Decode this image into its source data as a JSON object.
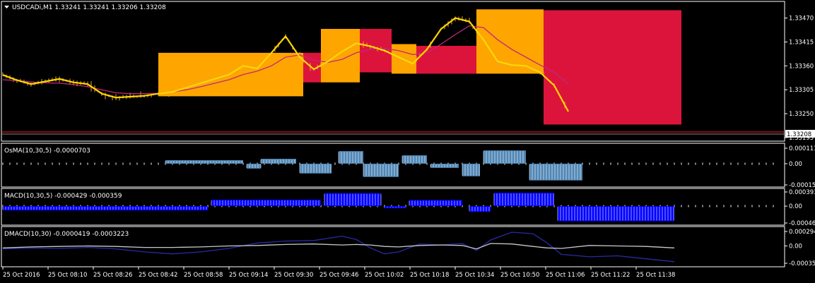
{
  "window": {
    "menu_icon": "triangle-down-icon",
    "symbol_header": "USDCADi,M1  1.33241 1.33241 1.33206 1.33208"
  },
  "colors": {
    "background": "#000000",
    "frame": "#ffffff",
    "price_line": "#ffd700",
    "ma_line": "#c0287a",
    "candles": "#e6a53a",
    "bid_line": "#ff2020",
    "box_orange": "#ffa500",
    "box_red": "#dc143c",
    "osma_hist": "#4f86b5",
    "macd_hist": "#0000ff",
    "dmacd_main": "#2a2aa5",
    "dmacd_signal": "#c8c8c8"
  },
  "chart_data": [
    {
      "type": "line",
      "panel": "price",
      "title": "USDCADi,M1",
      "current_price_label": "1.33208",
      "yticks": [
        "1.33470",
        "1.33415",
        "1.33360",
        "1.33305",
        "1.33250",
        "1.33195"
      ],
      "ylim": [
        1.3319,
        1.33505
      ],
      "x": [
        0,
        4,
        8,
        12,
        16,
        20,
        24,
        28,
        32,
        36,
        40,
        44,
        48,
        52,
        56,
        60,
        64,
        68,
        72,
        76,
        80,
        84,
        88,
        92,
        96,
        100,
        104,
        108,
        112,
        116,
        120,
        124,
        128,
        132,
        136,
        140,
        144,
        148,
        152,
        156,
        160
      ],
      "series": [
        {
          "values": [
            1.33339,
            1.33327,
            1.33318,
            1.33324,
            1.3333,
            1.33322,
            1.33318,
            1.33296,
            1.33287,
            1.33289,
            1.33291,
            1.33296,
            1.333,
            1.3331,
            1.3332,
            1.3333,
            1.3334,
            1.3336,
            1.33354,
            1.3339,
            1.33428,
            1.3338,
            1.33352,
            1.3337,
            1.33393,
            1.33412,
            1.33405,
            1.33395,
            1.3338,
            1.33365,
            1.33398,
            1.33445,
            1.3347,
            1.33462,
            1.3342,
            1.3337,
            1.33362,
            1.3336,
            1.33345,
            1.33315,
            1.33255
          ]
        },
        {
          "values": [
            1.33328,
            1.33326,
            1.33323,
            1.33321,
            1.3332,
            1.33317,
            1.33312,
            1.33305,
            1.33298,
            1.33296,
            1.33296,
            1.33297,
            1.333,
            1.33305,
            1.33312,
            1.3332,
            1.33328,
            1.3334,
            1.33348,
            1.3336,
            1.3338,
            1.33385,
            1.33373,
            1.33368,
            1.33375,
            1.3339,
            1.33398,
            1.334,
            1.33395,
            1.33386,
            1.3339,
            1.3341,
            1.33432,
            1.33452,
            1.33448,
            1.3342,
            1.33398,
            1.3338,
            1.33362,
            1.33345,
            1.33318
          ]
        }
      ],
      "boxes": [
        {
          "x0": 44,
          "x1": 85,
          "y0": 1.3329,
          "y1": 1.3339,
          "color": "orange"
        },
        {
          "x0": 85,
          "x1": 90,
          "y0": 1.33322,
          "y1": 1.3339,
          "color": "red"
        },
        {
          "x0": 90,
          "x1": 101,
          "y0": 1.33322,
          "y1": 1.33445,
          "color": "orange"
        },
        {
          "x0": 101,
          "x1": 110,
          "y0": 1.33345,
          "y1": 1.33445,
          "color": "red"
        },
        {
          "x0": 110,
          "x1": 117,
          "y0": 1.33342,
          "y1": 1.3341,
          "color": "orange"
        },
        {
          "x0": 117,
          "x1": 134,
          "y0": 1.33342,
          "y1": 1.33406,
          "color": "red"
        },
        {
          "x0": 134,
          "x1": 153,
          "y0": 1.33342,
          "y1": 1.3349,
          "color": "orange"
        },
        {
          "x0": 153,
          "x1": 192,
          "y0": 1.33225,
          "y1": 1.33488,
          "color": "red"
        }
      ]
    },
    {
      "type": "bar",
      "panel": "osma",
      "title": "OsMA(10,30,5) -0.0000703",
      "yticks": [
        "0.0001110",
        "0.00",
        "-0.000152"
      ],
      "ylim": [
        -0.000152,
        0.000111
      ],
      "blocks": [
        {
          "x0": 46,
          "x1": 68,
          "v": 2.5e-05
        },
        {
          "x0": 69,
          "x1": 73,
          "v": -3.5e-05
        },
        {
          "x0": 73,
          "x1": 83,
          "v": 3.5e-05
        },
        {
          "x0": 84,
          "x1": 93,
          "v": -7e-05
        },
        {
          "x0": 95,
          "x1": 102,
          "v": 9e-05
        },
        {
          "x0": 102,
          "x1": 112,
          "v": -9.5e-05
        },
        {
          "x0": 113,
          "x1": 120,
          "v": 6e-05
        },
        {
          "x0": 121,
          "x1": 129,
          "v": -3e-05
        },
        {
          "x0": 130,
          "x1": 135,
          "v": -9e-05
        },
        {
          "x0": 136,
          "x1": 148,
          "v": 9.5e-05
        },
        {
          "x0": 149,
          "x1": 164,
          "v": -0.00012
        }
      ]
    },
    {
      "type": "bar",
      "panel": "macd",
      "title": "MACD(10,30,5) -0.000429 -0.000359",
      "yticks": [
        "0.000393",
        "0.00",
        "-0.000469"
      ],
      "ylim": [
        -0.000469,
        0.000393
      ],
      "blocks": [
        {
          "x0": 0,
          "x1": 58,
          "v": -0.00012
        },
        {
          "x0": 59,
          "x1": 90,
          "v": 0.00018
        },
        {
          "x0": 91,
          "x1": 107,
          "v": 0.00036
        },
        {
          "x0": 108,
          "x1": 114,
          "v": -6e-05
        },
        {
          "x0": 115,
          "x1": 130,
          "v": 0.00017
        },
        {
          "x0": 132,
          "x1": 138,
          "v": -0.00016
        },
        {
          "x0": 139,
          "x1": 156,
          "v": 0.00037
        },
        {
          "x0": 157,
          "x1": 190,
          "v": -0.00042
        }
      ]
    },
    {
      "type": "line",
      "panel": "dmacd",
      "title": "DMACD(10,30) -0.0000419 -0.0003223",
      "yticks": [
        "0.000294",
        "0.00",
        "-0.000351"
      ],
      "ylim": [
        -0.000351,
        0.000294
      ],
      "x": [
        0,
        8,
        16,
        24,
        32,
        40,
        48,
        56,
        64,
        72,
        80,
        88,
        96,
        100,
        104,
        108,
        112,
        118,
        124,
        130,
        134,
        138,
        144,
        150,
        154,
        158,
        166,
        174,
        182,
        190
      ],
      "series": [
        {
          "values": [
            -6e-05,
            -4e-05,
            -5e-05,
            -3e-05,
            -6e-05,
            -0.00012,
            -0.00016,
            -0.00012,
            -5e-05,
            6e-05,
            0.0001,
            0.00011,
            0.0002,
            0.00013,
            -4e-05,
            -0.00016,
            -0.00012,
            4e-05,
            2e-05,
            5e-05,
            -9e-05,
            0.00012,
            0.00028,
            0.00025,
            6e-05,
            -0.00017,
            -0.00022,
            -0.0002,
            -0.00026,
            -0.00032
          ]
        },
        {
          "values": [
            -4e-05,
            -2e-05,
            -1e-05,
            0.0,
            -1e-05,
            -3e-05,
            -3e-05,
            -2e-05,
            0.0,
            1e-05,
            3e-05,
            4e-05,
            2e-05,
            3e-05,
            2e-05,
            -1e-05,
            -2e-05,
            1e-05,
            2e-05,
            1e-05,
            -6e-05,
            5e-05,
            4e-05,
            -1e-05,
            -4e-05,
            -5e-05,
            1e-05,
            0.0,
            -1e-05,
            -4e-05
          ]
        }
      ]
    }
  ],
  "time_axis": [
    "25 Oct 2016",
    "25 Oct 08:10",
    "25 Oct 08:26",
    "25 Oct 08:42",
    "25 Oct 08:58",
    "25 Oct 09:14",
    "25 Oct 09:30",
    "25 Oct 09:46",
    "25 Oct 10:02",
    "25 Oct 10:18",
    "25 Oct 10:34",
    "25 Oct 10:50",
    "25 Oct 11:06",
    "25 Oct 11:22",
    "25 Oct 11:38"
  ]
}
